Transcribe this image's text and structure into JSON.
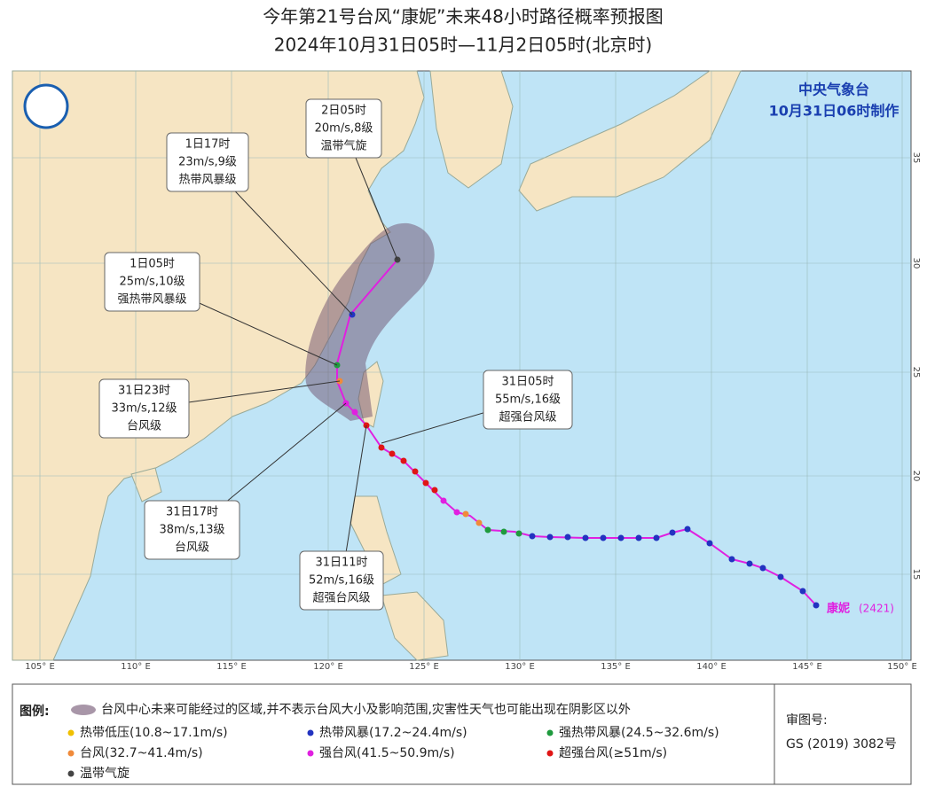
{
  "header": {
    "title": "今年第21号台风“康妮”未来48小时路径概率预报图",
    "subtitle": "2024年10月31日05时—11月2日05时(北京时)"
  },
  "agency": {
    "name": "中央气象台",
    "issued": "10月31日06时制作"
  },
  "map": {
    "longitude_labels": [
      "105° E",
      "110° E",
      "115° E",
      "120° E",
      "125° E",
      "130° E",
      "135° E",
      "140° E",
      "145° E",
      "150° E"
    ],
    "latitude_labels": [
      "35",
      "30",
      "25",
      "20",
      "15"
    ],
    "typhoon_name": "康妮",
    "typhoon_code": "(2421)",
    "callouts": [
      {
        "time": "2日05时",
        "wind": "20m/s,8级",
        "level": "温带气旋"
      },
      {
        "time": "1日17时",
        "wind": "23m/s,9级",
        "level": "热带风暴级"
      },
      {
        "time": "1日05时",
        "wind": "25m/s,10级",
        "level": "强热带风暴级"
      },
      {
        "time": "31日23时",
        "wind": "33m/s,12级",
        "level": "台风级"
      },
      {
        "time": "31日17时",
        "wind": "38m/s,13级",
        "level": "台风级"
      },
      {
        "time": "31日11时",
        "wind": "52m/s,16级",
        "level": "超强台风级"
      },
      {
        "time": "31日05时",
        "wind": "55m/s,16级",
        "level": "超强台风级"
      }
    ]
  },
  "legend": {
    "title": "图例:",
    "cone": "台风中心未来可能经过的区域,并不表示台风大小及影响范围,灾害性天气也可能出现在阴影区以外",
    "items": [
      {
        "label": "热带低压(10.8~17.1m/s)",
        "color": "#f0c000"
      },
      {
        "label": "热带风暴(17.2~24.4m/s)",
        "color": "#2233c0"
      },
      {
        "label": "强热带风暴(24.5~32.6m/s)",
        "color": "#1f9a3e"
      },
      {
        "label": "台风(32.7~41.4m/s)",
        "color": "#f08a3a"
      },
      {
        "label": "强台风(41.5~50.9m/s)",
        "color": "#e020e0"
      },
      {
        "label": "超强台风(≥51m/s)",
        "color": "#e01515"
      },
      {
        "label": "温带气旋",
        "color": "#444444"
      }
    ]
  },
  "review": {
    "label": "审图号:",
    "number": "GS (2019) 3082号"
  }
}
